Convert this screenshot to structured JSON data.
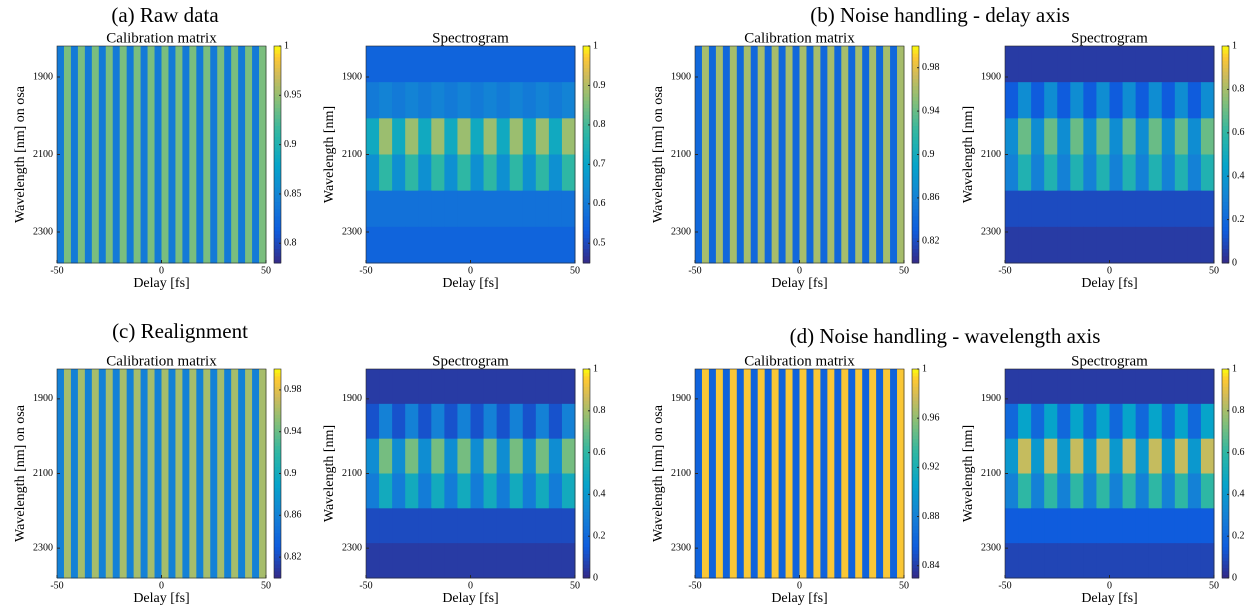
{
  "figure_titles": [
    "(a) Raw data",
    "(b) Noise handling - delay axis",
    "(c) Realignment",
    "(d) Noise handling - wavelength axis"
  ],
  "chart_data": [
    {
      "type": "heatmap",
      "title": "Calibration matrix",
      "xlabel": "Delay [fs]",
      "ylabel": "Wavelength [nm] on osa",
      "xlim": [
        -50,
        50
      ],
      "xticks": [
        -50,
        0,
        50
      ],
      "ylim": [
        1820,
        2380
      ],
      "yticks": [
        1900,
        2100,
        2300
      ],
      "clim": [
        0.78,
        1
      ],
      "cticks": [
        0.8,
        0.85,
        0.9,
        0.95,
        1
      ],
      "z": [
        [
          0.84,
          0.94,
          0.84,
          0.94,
          0.84,
          0.94,
          0.84,
          0.94,
          0.84,
          0.94,
          0.84,
          0.94,
          0.84,
          0.94,
          0.84,
          0.94,
          0.84,
          0.94,
          0.84,
          0.94,
          0.84,
          0.94,
          0.84,
          0.94,
          0.84,
          0.94,
          0.84,
          0.94,
          0.84,
          0.94
        ]
      ]
    },
    {
      "type": "heatmap",
      "title": "Spectrogram",
      "xlabel": "Delay [fs]",
      "ylabel": "Wavelength [nm]",
      "xlim": [
        -50,
        50
      ],
      "xticks": [
        -50,
        0,
        50
      ],
      "ylim": [
        1820,
        2380
      ],
      "yticks": [
        1900,
        2100,
        2300
      ],
      "clim": [
        0.45,
        1
      ],
      "cticks": [
        0.5,
        0.6,
        0.7,
        0.8,
        0.9,
        1
      ],
      "z": [
        [
          0.55,
          0.55,
          0.55,
          0.55,
          0.55,
          0.55,
          0.55,
          0.55,
          0.55,
          0.55,
          0.55,
          0.55,
          0.55,
          0.55,
          0.55,
          0.55
        ],
        [
          0.6,
          0.62,
          0.6,
          0.62,
          0.6,
          0.62,
          0.6,
          0.62,
          0.6,
          0.62,
          0.6,
          0.62,
          0.6,
          0.62,
          0.6,
          0.62
        ],
        [
          0.72,
          0.88,
          0.72,
          0.88,
          0.72,
          0.88,
          0.72,
          0.88,
          0.72,
          0.88,
          0.72,
          0.88,
          0.72,
          0.88,
          0.72,
          0.88
        ],
        [
          0.65,
          0.78,
          0.65,
          0.78,
          0.65,
          0.78,
          0.65,
          0.78,
          0.65,
          0.78,
          0.65,
          0.78,
          0.65,
          0.78,
          0.65,
          0.78
        ],
        [
          0.58,
          0.58,
          0.58,
          0.58,
          0.58,
          0.58,
          0.58,
          0.58,
          0.58,
          0.58,
          0.58,
          0.58,
          0.58,
          0.58,
          0.58,
          0.58
        ],
        [
          0.55,
          0.55,
          0.55,
          0.55,
          0.55,
          0.55,
          0.55,
          0.55,
          0.55,
          0.55,
          0.55,
          0.55,
          0.55,
          0.55,
          0.55,
          0.55
        ]
      ]
    },
    {
      "type": "heatmap",
      "title": "Calibration matrix",
      "xlabel": "Delay [fs]",
      "ylabel": "Wavelength [nm] on osa",
      "xlim": [
        -50,
        50
      ],
      "xticks": [
        -50,
        0,
        50
      ],
      "ylim": [
        1820,
        2380
      ],
      "yticks": [
        1900,
        2100,
        2300
      ],
      "clim": [
        0.8,
        1
      ],
      "cticks": [
        0.82,
        0.86,
        0.9,
        0.94,
        0.98
      ],
      "z": [
        [
          0.84,
          0.96,
          0.84,
          0.96,
          0.84,
          0.96,
          0.84,
          0.96,
          0.84,
          0.96,
          0.84,
          0.96,
          0.84,
          0.96,
          0.84,
          0.96,
          0.84,
          0.96,
          0.84,
          0.96,
          0.84,
          0.96,
          0.84,
          0.96,
          0.84,
          0.96,
          0.84,
          0.96,
          0.84,
          0.96
        ]
      ]
    },
    {
      "type": "heatmap",
      "title": "Spectrogram",
      "xlabel": "Delay [fs]",
      "ylabel": "Wavelength [nm]",
      "xlim": [
        -50,
        50
      ],
      "xticks": [
        -50,
        0,
        50
      ],
      "ylim": [
        1820,
        2380
      ],
      "yticks": [
        1900,
        2100,
        2300
      ],
      "clim": [
        0,
        1
      ],
      "cticks": [
        0,
        0.2,
        0.4,
        0.6,
        0.8,
        1
      ],
      "z": [
        [
          0.05,
          0.05,
          0.05,
          0.05,
          0.05,
          0.05,
          0.05,
          0.05,
          0.05,
          0.05,
          0.05,
          0.05,
          0.05,
          0.05,
          0.05,
          0.05
        ],
        [
          0.15,
          0.35,
          0.15,
          0.35,
          0.15,
          0.35,
          0.15,
          0.35,
          0.15,
          0.35,
          0.15,
          0.35,
          0.15,
          0.35,
          0.15,
          0.35
        ],
        [
          0.35,
          0.7,
          0.35,
          0.7,
          0.35,
          0.7,
          0.35,
          0.7,
          0.35,
          0.7,
          0.35,
          0.7,
          0.35,
          0.7,
          0.35,
          0.7
        ],
        [
          0.3,
          0.55,
          0.3,
          0.55,
          0.3,
          0.55,
          0.3,
          0.55,
          0.3,
          0.55,
          0.3,
          0.55,
          0.3,
          0.55,
          0.3,
          0.55
        ],
        [
          0.1,
          0.1,
          0.1,
          0.1,
          0.1,
          0.1,
          0.1,
          0.1,
          0.1,
          0.1,
          0.1,
          0.1,
          0.1,
          0.1,
          0.1,
          0.1
        ],
        [
          0.05,
          0.05,
          0.05,
          0.05,
          0.05,
          0.05,
          0.05,
          0.05,
          0.05,
          0.05,
          0.05,
          0.05,
          0.05,
          0.05,
          0.05,
          0.05
        ]
      ]
    },
    {
      "type": "heatmap",
      "title": "Calibration matrix",
      "xlabel": "Delay [fs]",
      "ylabel": "Wavelength [nm] on osa",
      "xlim": [
        -50,
        50
      ],
      "xticks": [
        -50,
        0,
        50
      ],
      "ylim": [
        1820,
        2380
      ],
      "yticks": [
        1900,
        2100,
        2300
      ],
      "clim": [
        0.8,
        1
      ],
      "cticks": [
        0.82,
        0.86,
        0.9,
        0.94,
        0.98
      ],
      "z": [
        [
          0.86,
          0.96,
          0.86,
          0.96,
          0.86,
          0.96,
          0.86,
          0.96,
          0.86,
          0.96,
          0.86,
          0.96,
          0.86,
          0.96,
          0.86,
          0.96,
          0.86,
          0.96,
          0.86,
          0.96,
          0.86,
          0.96,
          0.86,
          0.96,
          0.86,
          0.96,
          0.86,
          0.96,
          0.86,
          0.96
        ]
      ]
    },
    {
      "type": "heatmap",
      "title": "Spectrogram",
      "xlabel": "Delay [fs]",
      "ylabel": "Wavelength [nm]",
      "xlim": [
        -50,
        50
      ],
      "xticks": [
        -50,
        0,
        50
      ],
      "ylim": [
        1820,
        2380
      ],
      "yticks": [
        1900,
        2100,
        2300
      ],
      "clim": [
        0,
        1
      ],
      "cticks": [
        0,
        0.2,
        0.4,
        0.6,
        0.8,
        1
      ],
      "z": [
        [
          0.05,
          0.05,
          0.05,
          0.05,
          0.05,
          0.05,
          0.05,
          0.05,
          0.05,
          0.05,
          0.05,
          0.05,
          0.05,
          0.05,
          0.05,
          0.05
        ],
        [
          0.12,
          0.3,
          0.12,
          0.3,
          0.12,
          0.3,
          0.12,
          0.3,
          0.12,
          0.3,
          0.12,
          0.3,
          0.12,
          0.3,
          0.12,
          0.3
        ],
        [
          0.35,
          0.72,
          0.35,
          0.72,
          0.35,
          0.72,
          0.35,
          0.72,
          0.35,
          0.72,
          0.35,
          0.72,
          0.35,
          0.72,
          0.35,
          0.72
        ],
        [
          0.28,
          0.5,
          0.28,
          0.5,
          0.28,
          0.5,
          0.28,
          0.5,
          0.28,
          0.5,
          0.28,
          0.5,
          0.28,
          0.5,
          0.28,
          0.5
        ],
        [
          0.1,
          0.1,
          0.1,
          0.1,
          0.1,
          0.1,
          0.1,
          0.1,
          0.1,
          0.1,
          0.1,
          0.1,
          0.1,
          0.1,
          0.1,
          0.1
        ],
        [
          0.05,
          0.05,
          0.05,
          0.05,
          0.05,
          0.05,
          0.05,
          0.05,
          0.05,
          0.05,
          0.05,
          0.05,
          0.05,
          0.05,
          0.05,
          0.05
        ]
      ]
    },
    {
      "type": "heatmap",
      "title": "Calibration matrix",
      "xlabel": "Delay [fs]",
      "ylabel": "Wavelength [nm] on osa",
      "xlim": [
        -50,
        50
      ],
      "xticks": [
        -50,
        0,
        50
      ],
      "ylim": [
        1820,
        2380
      ],
      "yticks": [
        1900,
        2100,
        2300
      ],
      "clim": [
        0.83,
        1
      ],
      "cticks": [
        0.84,
        0.88,
        0.92,
        0.96,
        1
      ],
      "z": [
        [
          0.86,
          0.99,
          0.86,
          0.99,
          0.86,
          0.99,
          0.86,
          0.99,
          0.86,
          0.99,
          0.86,
          0.99,
          0.86,
          0.99,
          0.86,
          0.99,
          0.86,
          0.99,
          0.86,
          0.99,
          0.86,
          0.99,
          0.86,
          0.99,
          0.86,
          0.99,
          0.86,
          0.99,
          0.86,
          0.99
        ]
      ]
    },
    {
      "type": "heatmap",
      "title": "Spectrogram",
      "xlabel": "Delay [fs]",
      "ylabel": "Wavelength [nm]",
      "xlim": [
        -50,
        50
      ],
      "xticks": [
        -50,
        0,
        50
      ],
      "ylim": [
        1820,
        2380
      ],
      "yticks": [
        1900,
        2100,
        2300
      ],
      "clim": [
        0,
        1
      ],
      "cticks": [
        0,
        0.2,
        0.4,
        0.6,
        0.8,
        1
      ],
      "z": [
        [
          0.05,
          0.05,
          0.05,
          0.05,
          0.05,
          0.05,
          0.05,
          0.05,
          0.05,
          0.05,
          0.05,
          0.05,
          0.05,
          0.05,
          0.05,
          0.05
        ],
        [
          0.2,
          0.45,
          0.2,
          0.45,
          0.2,
          0.45,
          0.2,
          0.45,
          0.2,
          0.45,
          0.2,
          0.45,
          0.2,
          0.45,
          0.2,
          0.45
        ],
        [
          0.4,
          0.85,
          0.4,
          0.85,
          0.4,
          0.85,
          0.4,
          0.85,
          0.4,
          0.85,
          0.4,
          0.85,
          0.4,
          0.85,
          0.4,
          0.85
        ],
        [
          0.3,
          0.6,
          0.3,
          0.6,
          0.3,
          0.6,
          0.3,
          0.6,
          0.3,
          0.6,
          0.3,
          0.6,
          0.3,
          0.6,
          0.3,
          0.6
        ],
        [
          0.15,
          0.15,
          0.15,
          0.15,
          0.15,
          0.15,
          0.15,
          0.15,
          0.15,
          0.15,
          0.15,
          0.15,
          0.15,
          0.15,
          0.15,
          0.15
        ],
        [
          0.08,
          0.08,
          0.08,
          0.08,
          0.08,
          0.08,
          0.08,
          0.08,
          0.08,
          0.08,
          0.08,
          0.08,
          0.08,
          0.08,
          0.08,
          0.08
        ]
      ]
    }
  ]
}
